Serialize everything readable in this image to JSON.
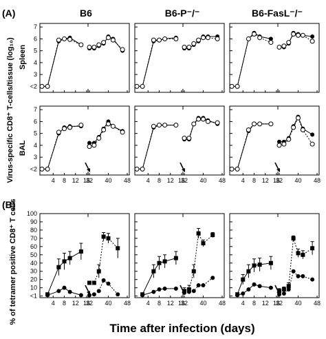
{
  "figure": {
    "label_a": "(A)",
    "label_b": "(B)",
    "ylabel_a": "Virus-specific CD8⁺ T-cells/tissue (log₁₀)",
    "ylabel_b": "% of tetramer positive CD8⁺ T cells",
    "xlabel": "Time after infection (days)",
    "row_labels": [
      "Spleen",
      "BAL"
    ],
    "columns": [
      "B6",
      "B6-P⁻/⁻",
      "B6-FasL⁻/⁻"
    ],
    "log_ticks": [
      "<2",
      "3",
      "4",
      "5",
      "6",
      "7"
    ],
    "pct_ticks": [
      "<1",
      "10",
      "20",
      "30",
      "40",
      "50",
      "60",
      "70",
      "80",
      "90",
      "100"
    ],
    "x_ticks_primary": [
      "4",
      "8",
      "12",
      "16"
    ],
    "x_ticks_secondary": [
      "32",
      "40",
      "48"
    ]
  },
  "chart_data": [
    {
      "type": "line",
      "panel": "A-Spleen-B6",
      "xlim": [
        0,
        16
      ],
      "ylim": [
        1.5,
        7.3
      ],
      "series": [
        {
          "marker": "filled-circle",
          "x": [
            0,
            2,
            6,
            8,
            10,
            14
          ],
          "y": [
            2,
            2,
            5.8,
            6.0,
            6.1,
            5.5
          ]
        },
        {
          "marker": "open-circle",
          "x": [
            0,
            2,
            6,
            8,
            10,
            14
          ],
          "y": [
            2,
            2,
            5.9,
            6.0,
            5.95,
            5.5
          ]
        }
      ],
      "series2": [
        {
          "marker": "filled-circle",
          "x": [
            32,
            34,
            36,
            38,
            40,
            42,
            46
          ],
          "y": [
            5.2,
            5.2,
            5.4,
            5.6,
            6.2,
            6.0,
            5.0
          ]
        },
        {
          "marker": "open-circle",
          "x": [
            32,
            34,
            36,
            38,
            40,
            42,
            46
          ],
          "y": [
            5.3,
            5.3,
            5.5,
            5.7,
            6.1,
            5.9,
            5.1
          ]
        }
      ]
    },
    {
      "type": "line",
      "panel": "A-Spleen-B6P",
      "xlim": [
        0,
        16
      ],
      "ylim": [
        1.5,
        7.3
      ],
      "series": [
        {
          "marker": "filled-circle",
          "x": [
            0,
            2,
            6,
            8,
            10,
            14
          ],
          "y": [
            2,
            2,
            5.8,
            5.9,
            6.0,
            6.1
          ]
        },
        {
          "marker": "open-circle",
          "x": [
            0,
            2,
            6,
            8,
            10,
            14
          ],
          "y": [
            2,
            2,
            5.9,
            5.9,
            6.0,
            6.0
          ]
        }
      ],
      "series2": [
        {
          "marker": "filled-circle",
          "x": [
            32,
            34,
            36,
            38,
            40,
            42,
            46
          ],
          "y": [
            5.2,
            5.2,
            5.5,
            5.8,
            6.2,
            6.2,
            6.2
          ]
        },
        {
          "marker": "open-circle",
          "x": [
            32,
            34,
            36,
            38,
            40,
            42,
            46
          ],
          "y": [
            5.3,
            5.3,
            5.6,
            5.9,
            6.1,
            6.1,
            6.0
          ]
        }
      ]
    },
    {
      "type": "line",
      "panel": "A-Spleen-FasL",
      "xlim": [
        0,
        16
      ],
      "ylim": [
        1.5,
        7.3
      ],
      "series": [
        {
          "marker": "filled-circle",
          "x": [
            0,
            2,
            6,
            8,
            10,
            14
          ],
          "y": [
            2,
            2,
            6.0,
            6.5,
            6.2,
            6.0
          ]
        },
        {
          "marker": "open-circle",
          "x": [
            0,
            2,
            6,
            8,
            10,
            14
          ],
          "y": [
            2,
            2,
            6.0,
            6.4,
            6.1,
            5.7
          ]
        }
      ],
      "series2": [
        {
          "marker": "filled-circle",
          "x": [
            32,
            34,
            36,
            38,
            40,
            42,
            46
          ],
          "y": [
            5.3,
            5.3,
            5.6,
            6.5,
            6.4,
            6.3,
            6.2
          ]
        },
        {
          "marker": "open-circle",
          "x": [
            32,
            34,
            36,
            38,
            40,
            42,
            46
          ],
          "y": [
            5.3,
            5.4,
            5.7,
            6.4,
            6.3,
            6.3,
            5.8
          ]
        }
      ]
    },
    {
      "type": "line",
      "panel": "A-BAL-B6",
      "xlim": [
        0,
        16
      ],
      "ylim": [
        1.5,
        7.3
      ],
      "series": [
        {
          "marker": "filled-circle",
          "x": [
            0,
            2,
            6,
            8,
            10,
            14
          ],
          "y": [
            2,
            2,
            5.0,
            5.5,
            5.6,
            5.6
          ]
        },
        {
          "marker": "open-circle",
          "x": [
            0,
            2,
            6,
            8,
            10,
            14
          ],
          "y": [
            2,
            2,
            5.1,
            5.4,
            5.5,
            5.7
          ]
        }
      ],
      "series2": [
        {
          "marker": "filled-circle",
          "x": [
            32,
            34,
            36,
            38,
            40,
            42,
            46
          ],
          "y": [
            4.2,
            4.2,
            4.7,
            5.4,
            6.0,
            5.6,
            5.2
          ]
        },
        {
          "marker": "open-circle",
          "x": [
            32,
            34,
            36,
            38,
            40,
            42,
            46
          ],
          "y": [
            3.9,
            4.0,
            4.6,
            5.3,
            5.8,
            5.6,
            5.1
          ]
        }
      ]
    },
    {
      "type": "line",
      "panel": "A-BAL-B6P",
      "xlim": [
        0,
        16
      ],
      "ylim": [
        1.5,
        7.3
      ],
      "series": [
        {
          "marker": "filled-circle",
          "x": [
            0,
            2,
            6,
            8,
            10,
            14
          ],
          "y": [
            2,
            2,
            5.5,
            5.7,
            5.7,
            5.7
          ]
        },
        {
          "marker": "open-circle",
          "x": [
            0,
            2,
            6,
            8,
            10,
            14
          ],
          "y": [
            2,
            2,
            5.6,
            5.7,
            5.7,
            5.7
          ]
        }
      ],
      "series2": [
        {
          "marker": "filled-circle",
          "x": [
            32,
            34,
            36,
            38,
            40,
            42,
            46
          ],
          "y": [
            4.5,
            4.5,
            5.8,
            6.3,
            6.3,
            6.1,
            5.8
          ]
        },
        {
          "marker": "open-circle",
          "x": [
            32,
            34,
            36,
            38,
            40,
            42,
            46
          ],
          "y": [
            4.6,
            4.6,
            5.8,
            6.2,
            6.2,
            6.0,
            5.9
          ]
        }
      ]
    },
    {
      "type": "line",
      "panel": "A-BAL-FasL",
      "xlim": [
        0,
        16
      ],
      "ylim": [
        1.5,
        7.3
      ],
      "series": [
        {
          "marker": "filled-circle",
          "x": [
            0,
            2,
            6,
            8,
            10,
            14
          ],
          "y": [
            2,
            2,
            5.2,
            5.8,
            5.8,
            5.8
          ]
        },
        {
          "marker": "open-circle",
          "x": [
            0,
            2,
            6,
            8,
            10,
            14
          ],
          "y": [
            2,
            2,
            5.3,
            5.8,
            5.8,
            5.8
          ]
        }
      ],
      "series2": [
        {
          "marker": "filled-circle",
          "x": [
            32,
            34,
            36,
            38,
            40,
            42,
            46
          ],
          "y": [
            4.3,
            4.3,
            4.6,
            5.6,
            6.4,
            5.4,
            4.9
          ]
        },
        {
          "marker": "open-circle",
          "x": [
            32,
            34,
            36,
            38,
            40,
            42,
            46
          ],
          "y": [
            4.0,
            4.1,
            4.5,
            5.5,
            6.3,
            5.3,
            4.1
          ]
        }
      ]
    },
    {
      "type": "line",
      "panel": "B-B6",
      "xlim": [
        0,
        16
      ],
      "ylim": [
        -2,
        100
      ],
      "series": [
        {
          "marker": "filled-square",
          "x": [
            2,
            6,
            8,
            10,
            14
          ],
          "y": [
            2,
            35,
            42,
            46,
            54
          ],
          "err": [
            0,
            10,
            10,
            8,
            10
          ]
        },
        {
          "marker": "filled-circle",
          "x": [
            2,
            6,
            8,
            10,
            14
          ],
          "y": [
            1,
            6,
            10,
            5,
            1
          ]
        }
      ],
      "series2": [
        {
          "marker": "filled-square",
          "x": [
            32,
            34,
            36,
            38,
            40,
            44
          ],
          "y": [
            16,
            16,
            30,
            72,
            70,
            58
          ],
          "err": [
            0,
            0,
            8,
            5,
            6,
            12
          ]
        },
        {
          "marker": "filled-circle",
          "x": [
            32,
            34,
            36,
            38,
            40,
            44
          ],
          "y": [
            1,
            2,
            6,
            19,
            15,
            2
          ]
        }
      ]
    },
    {
      "type": "line",
      "panel": "B-B6P",
      "xlim": [
        0,
        16
      ],
      "ylim": [
        -2,
        100
      ],
      "series": [
        {
          "marker": "filled-square",
          "x": [
            2,
            6,
            8,
            10,
            14
          ],
          "y": [
            2,
            30,
            40,
            42,
            46
          ],
          "err": [
            0,
            8,
            8,
            8,
            8
          ]
        },
        {
          "marker": "filled-circle",
          "x": [
            2,
            6,
            8,
            10,
            14
          ],
          "y": [
            1,
            5,
            8,
            9,
            9
          ]
        }
      ],
      "series2": [
        {
          "marker": "filled-square",
          "x": [
            32,
            34,
            36,
            38,
            40,
            44
          ],
          "y": [
            6,
            8,
            30,
            76,
            64,
            74
          ],
          "err": [
            4,
            5,
            8,
            6,
            4,
            3
          ]
        },
        {
          "marker": "filled-circle",
          "x": [
            32,
            34,
            36,
            38,
            40,
            44
          ],
          "y": [
            4,
            5,
            6,
            13,
            13,
            22
          ]
        }
      ]
    },
    {
      "type": "line",
      "panel": "B-FasL",
      "xlim": [
        0,
        16
      ],
      "ylim": [
        -2,
        100
      ],
      "series": [
        {
          "marker": "filled-square",
          "x": [
            2,
            4,
            6,
            8,
            10,
            14
          ],
          "y": [
            2,
            20,
            30,
            37,
            38,
            40
          ],
          "err": [
            0,
            6,
            8,
            8,
            8,
            8
          ]
        },
        {
          "marker": "filled-circle",
          "x": [
            2,
            4,
            6,
            8,
            10,
            14
          ],
          "y": [
            1,
            3,
            8,
            14,
            12,
            10
          ]
        }
      ],
      "series2": [
        {
          "marker": "filled-square",
          "x": [
            32,
            34,
            36,
            38,
            40,
            42,
            46
          ],
          "y": [
            6,
            8,
            12,
            70,
            52,
            50,
            58
          ],
          "err": [
            3,
            3,
            4,
            3,
            5,
            5,
            8
          ]
        },
        {
          "marker": "filled-circle",
          "x": [
            32,
            34,
            36,
            38,
            40,
            42,
            46
          ],
          "y": [
            2,
            3,
            8,
            30,
            24,
            24,
            20
          ]
        }
      ]
    }
  ]
}
